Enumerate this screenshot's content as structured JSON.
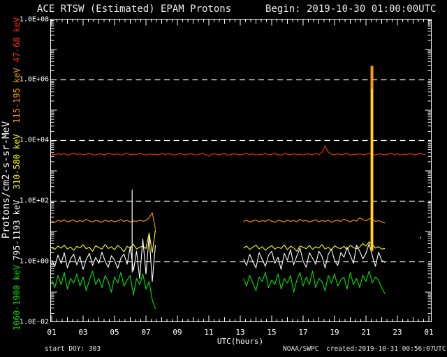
{
  "title": {
    "left": "ACE RTSW (Estimated) EPAM Protons",
    "right": "Begin: 2019-10-30 01:00:00UTC"
  },
  "footer": {
    "start_doy": "start DOY:  303",
    "agency": "NOAA/SWPC",
    "created": "created:2019-10-31 00:56:07UTC"
  },
  "axes": {
    "y_title": "Protons/cm2-s-sr-MeV",
    "x_title": "UTC(hours)",
    "y_tick_labels": [
      "1.0E+08",
      "1.0E+06",
      "1.0E+04",
      "1.0E+02",
      "1.0E+00",
      "1.0E-02"
    ],
    "x_tick_labels": [
      "01",
      "03",
      "05",
      "07",
      "09",
      "11",
      "13",
      "15",
      "17",
      "19",
      "21",
      "23",
      "01"
    ]
  },
  "legend": [
    {
      "label": "47-68 keV",
      "color": "#ff2d00"
    },
    {
      "label": "115-195 keV",
      "color": "#ff9a00"
    },
    {
      "label": "310-580 keV",
      "color": "#ffff00"
    },
    {
      "label": "795-1193 keV",
      "color": "#ffffff"
    },
    {
      "label": "1060-1900 keV",
      "color": "#00e400"
    }
  ],
  "chart_data": {
    "type": "line",
    "title": "ACE RTSW (Estimated) EPAM Protons",
    "xlabel": "UTC(hours)",
    "ylabel": "Protons/cm2-s-sr-MeV",
    "x_axis": {
      "start_hour": 1,
      "end_hour": 25,
      "major_tick_step_hours": 2,
      "minor_tick_step_hours": 0.3333
    },
    "y_axis": {
      "scale": "log10",
      "min_log": -2,
      "max_log": 8,
      "labeled_decades": [
        8,
        6,
        4,
        2,
        0,
        -2
      ],
      "dashed_gridline_decades": [
        6,
        4,
        2,
        0
      ]
    },
    "grid": "dashed-horizontal-only",
    "legend_position": "left-margin-vertical",
    "series": [
      {
        "name": "47-68 keV",
        "color": "#ff2d00",
        "segments": [
          {
            "t0": 1.0,
            "dt": 0.2,
            "log_flux": [
              3.55,
              3.53,
              3.56,
              3.54,
              3.57,
              3.52,
              3.55,
              3.58,
              3.54,
              3.56,
              3.53,
              3.55,
              3.57,
              3.54,
              3.52,
              3.56,
              3.55,
              3.53,
              3.57,
              3.55,
              3.54,
              3.56,
              3.52,
              3.55,
              3.58,
              3.53,
              3.55,
              3.54,
              3.57,
              3.55,
              3.52,
              3.56,
              3.54,
              3.55,
              3.53,
              3.57,
              3.54,
              3.56,
              3.55,
              3.52,
              3.55,
              3.57,
              3.53,
              3.54,
              3.56,
              3.55,
              3.52,
              3.55,
              3.57,
              3.54,
              3.48,
              3.55,
              3.56,
              3.53,
              3.55,
              3.57,
              3.52,
              3.54,
              3.56,
              3.55,
              3.53,
              3.55,
              3.57,
              3.54,
              3.56,
              3.52,
              3.55,
              3.54,
              3.57,
              3.53,
              3.55,
              3.56,
              3.54,
              3.52,
              3.57,
              3.55,
              3.53,
              3.56,
              3.54,
              3.55,
              3.52,
              3.56,
              3.55,
              3.53,
              3.57,
              3.54,
              3.6,
              3.82,
              3.62,
              3.55,
              3.53,
              3.56,
              3.54,
              3.55,
              3.57,
              3.52,
              3.55,
              3.54,
              3.56,
              3.53,
              3.55,
              3.57,
              3.54,
              3.52,
              3.56,
              3.55,
              3.53,
              3.55,
              3.57,
              3.54,
              3.56,
              3.52,
              3.55,
              3.54,
              3.56,
              3.55,
              3.53,
              3.57,
              3.55,
              3.54
            ]
          }
        ]
      },
      {
        "name": "115-195 keV",
        "color": "#ff9a00",
        "segments": [
          {
            "t0": 1.0,
            "dt": 0.2,
            "log_flux": [
              1.34,
              1.3,
              1.37,
              1.33,
              1.39,
              1.31,
              1.35,
              1.38,
              1.32,
              1.36,
              1.33,
              1.4,
              1.35,
              1.31,
              1.37,
              1.34,
              1.3,
              1.38,
              1.33,
              1.36,
              1.32,
              1.35,
              1.39,
              1.33,
              1.37,
              1.31,
              1.35,
              1.33,
              1.38,
              1.34,
              1.36,
              1.45,
              1.62,
              1.08
            ]
          },
          {
            "t0": 13.2,
            "dt": 0.2,
            "log_flux": [
              1.33,
              1.37,
              1.31,
              1.35,
              1.38,
              1.32,
              1.36,
              1.33,
              1.39,
              1.34,
              1.3,
              1.37,
              1.35,
              1.31,
              1.38,
              1.33,
              1.36,
              1.32,
              1.4,
              1.34,
              1.37,
              1.31,
              1.35,
              1.39,
              1.32,
              1.36,
              1.33,
              1.38,
              1.3,
              1.35,
              1.37,
              1.33,
              1.41,
              1.36,
              1.32,
              1.38,
              1.34,
              1.45,
              1.39,
              1.35,
              1.42,
              1.4,
              1.33,
              1.36,
              1.31,
              1.28
            ]
          }
        ]
      },
      {
        "name": "310-580 keV",
        "color": "#ffff00",
        "segments": [
          {
            "t0": 1.0,
            "dt": 0.2,
            "log_flux": [
              0.47,
              0.41,
              0.52,
              0.45,
              0.55,
              0.42,
              0.49,
              0.38,
              0.51,
              0.46,
              0.56,
              0.43,
              0.48,
              0.35,
              0.53,
              0.47,
              0.42,
              0.57,
              0.44,
              0.5,
              0.4,
              0.54,
              0.46,
              0.33,
              0.51,
              0.45,
              0.58,
              0.42,
              0.48,
              0.52,
              0.44,
              0.95,
              0.3,
              1.05
            ]
          },
          {
            "t0": 13.2,
            "dt": 0.2,
            "log_flux": [
              0.45,
              0.52,
              0.41,
              0.48,
              0.55,
              0.43,
              0.5,
              0.38,
              0.47,
              0.53,
              0.42,
              0.49,
              0.44,
              0.56,
              0.4,
              0.51,
              0.46,
              0.35,
              0.52,
              0.48,
              0.43,
              0.54,
              0.41,
              0.5,
              0.45,
              0.57,
              0.42,
              0.48,
              0.39,
              0.53,
              0.46,
              0.44,
              0.51,
              0.4,
              0.55,
              0.47,
              0.43,
              0.49,
              0.6,
              0.52,
              0.66,
              0.58,
              0.45,
              0.5,
              0.42,
              0.44
            ]
          }
        ]
      },
      {
        "name": "795-1193 keV",
        "color": "#ffffff",
        "segments": [
          {
            "t0": 1.0,
            "dt": 0.2,
            "log_flux": [
              0.05,
              -0.15,
              0.22,
              -0.05,
              0.3,
              -0.2,
              0.1,
              0.25,
              -0.1,
              0.18,
              -0.25,
              0.08,
              0.28,
              -0.12,
              0.15,
              -0.05,
              0.32,
              0.02,
              -0.18,
              0.2,
              0.05,
              -0.22,
              0.12,
              0.26,
              -0.08,
              0.5,
              -0.3,
              0.35,
              -0.55,
              0.75,
              -0.4,
              0.85,
              -0.65,
              0.55
            ]
          },
          {
            "t0": 13.2,
            "dt": 0.2,
            "log_flux": [
              0.1,
              -0.12,
              0.25,
              0.0,
              -0.2,
              0.3,
              0.08,
              -0.15,
              0.22,
              0.35,
              -0.05,
              0.15,
              -0.25,
              0.28,
              0.05,
              0.4,
              -0.1,
              0.2,
              0.45,
              0.02,
              -0.18,
              0.3,
              0.12,
              -0.08,
              0.35,
              0.18,
              -0.2,
              0.25,
              0.42,
              0.05,
              -0.12,
              0.3,
              0.15,
              0.48,
              0.22,
              -0.05,
              0.55,
              0.35,
              0.1,
              0.28,
              0.6,
              0.2,
              -0.15,
              0.32,
              0.05,
              -0.02
            ]
          }
        ]
      },
      {
        "name": "1060-1900 keV",
        "color": "#00e400",
        "segments": [
          {
            "t0": 1.0,
            "dt": 0.2,
            "log_flux": [
              -0.6,
              -0.85,
              -0.45,
              -0.75,
              -0.35,
              -0.9,
              -0.55,
              -0.7,
              -0.4,
              -0.8,
              -0.5,
              -0.95,
              -0.6,
              -0.3,
              -0.75,
              -0.55,
              -0.85,
              -0.45,
              -0.65,
              -1.0,
              -0.5,
              -0.7,
              -0.35,
              -0.8,
              -0.6,
              -0.45,
              -1.1,
              -0.55,
              -0.75,
              -0.4,
              -0.9,
              -0.65,
              -1.25,
              -1.55
            ]
          },
          {
            "t0": 13.2,
            "dt": 0.2,
            "log_flux": [
              -0.55,
              -0.8,
              -0.45,
              -0.7,
              -0.95,
              -0.5,
              -0.65,
              -0.35,
              -0.85,
              -0.6,
              -0.75,
              -0.4,
              -0.9,
              -0.55,
              -0.7,
              -0.45,
              -1.0,
              -0.6,
              -0.35,
              -0.8,
              -0.5,
              -0.75,
              -0.3,
              -0.85,
              -0.55,
              -0.65,
              -0.95,
              -0.45,
              -0.7,
              -0.4,
              -0.8,
              -0.6,
              -0.5,
              -0.9,
              -0.35,
              -0.75,
              -0.55,
              -0.85,
              -0.45,
              -0.65,
              -0.3,
              -0.7,
              -0.5,
              -0.6,
              -0.85,
              -1.05
            ]
          }
        ]
      }
    ],
    "spikes": [
      {
        "t": 6.12,
        "log_from": -0.35,
        "log_to": 2.38,
        "color": "#ffffff",
        "width": 1.2,
        "note": "white channel spike ~06:07 UTC"
      },
      {
        "t": 21.38,
        "log_from": 0.35,
        "log_to": 6.46,
        "color": "#ff9a00",
        "width": 4,
        "note": "orange channel spike ~21:23 UTC"
      },
      {
        "t": 21.38,
        "log_from": 0.4,
        "log_to": 5.7,
        "color": "#ffff00",
        "width": 2,
        "note": "yellow channel spike ~21:23 UTC"
      }
    ],
    "stray_points": [
      {
        "t": 24.47,
        "log": 0.8,
        "color": "#ff9a00"
      }
    ],
    "data_gap_hours": [
      7.6,
      13.2
    ]
  }
}
